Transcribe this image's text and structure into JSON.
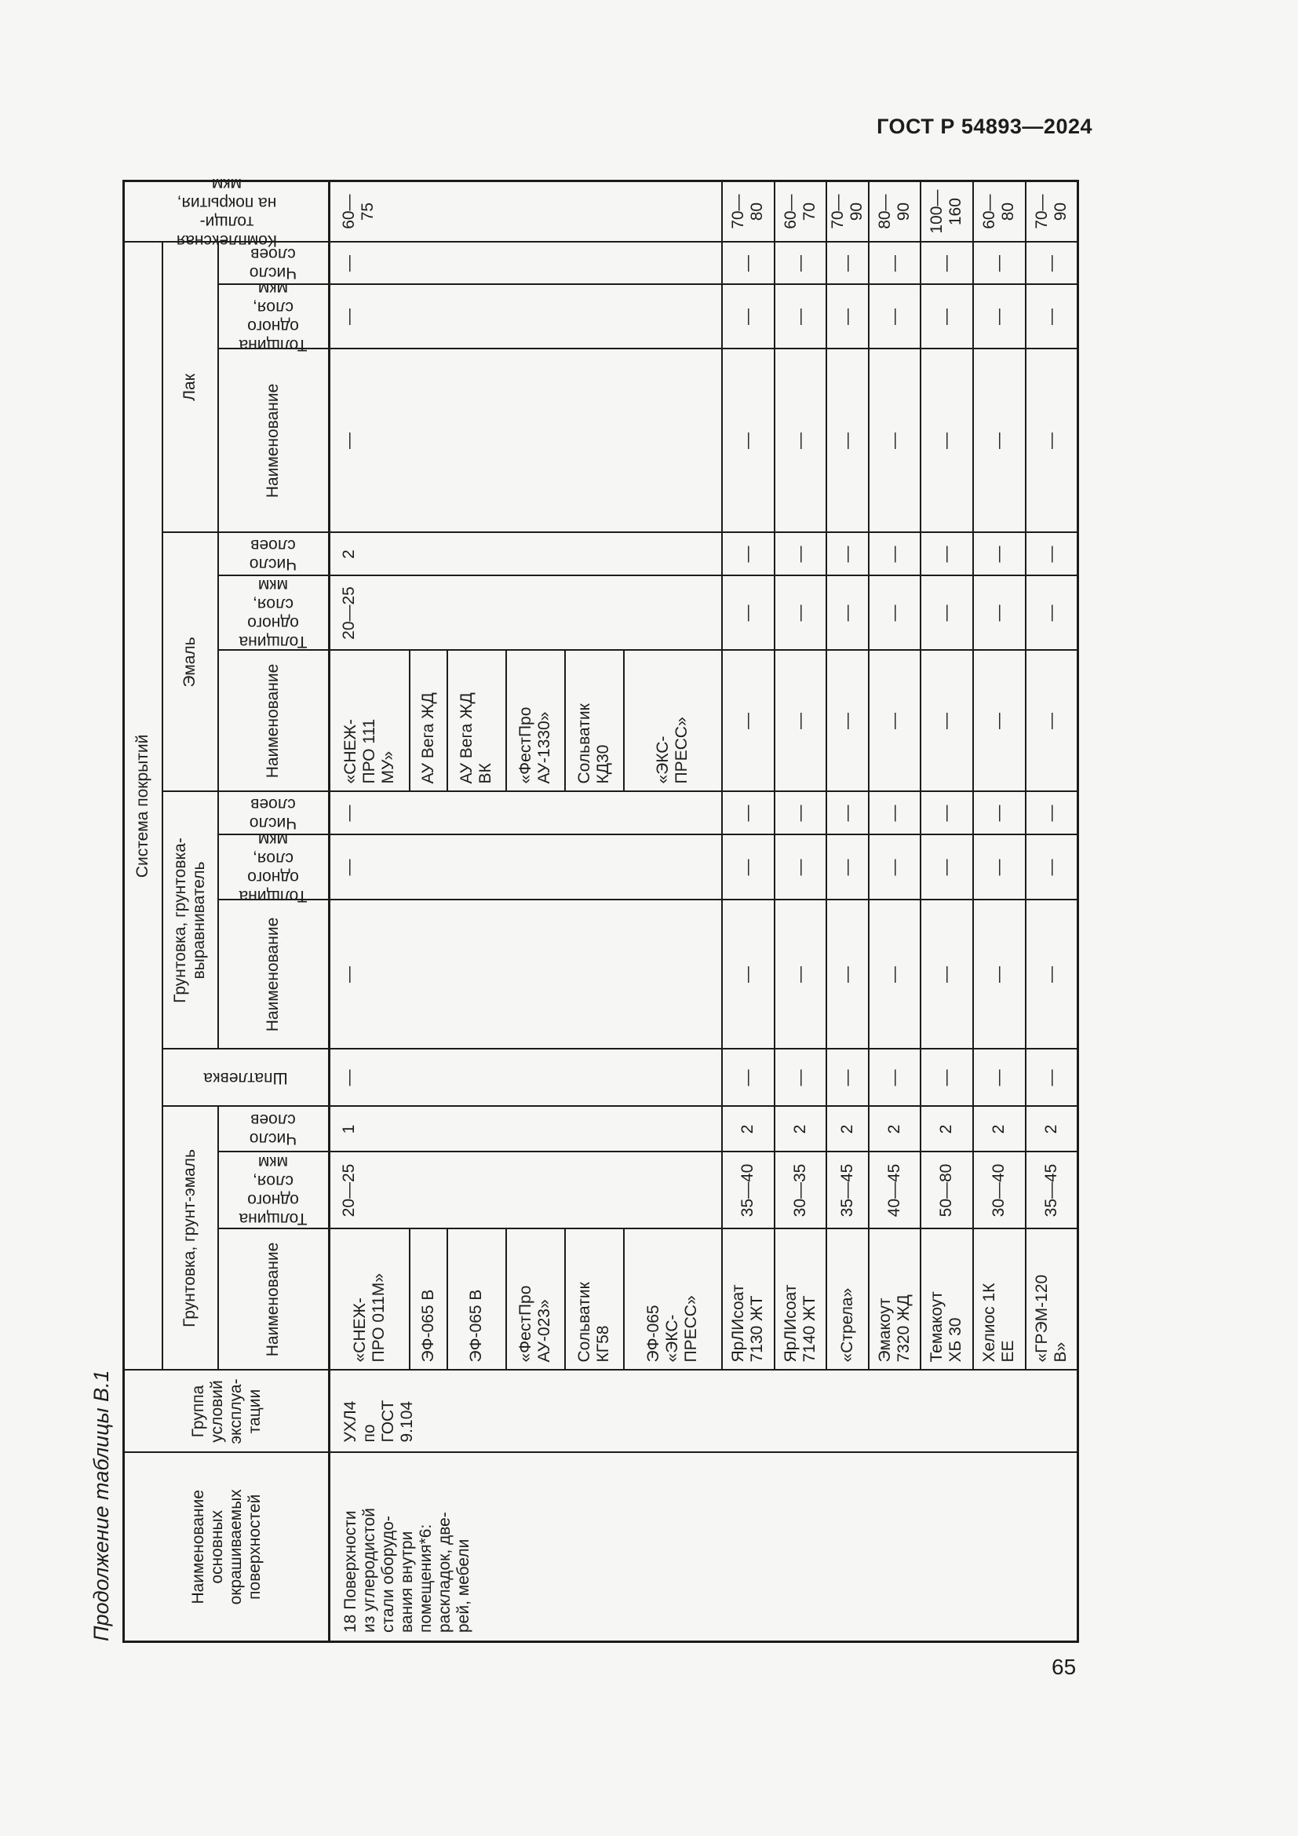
{
  "page": {
    "running_head": "ГОСТ Р 54893—2024",
    "page_number": "65",
    "table_caption": "Продолжение таблицы В.1"
  },
  "table": {
    "headers": {
      "surface": "Наименование\nосновных\nокрашиваемых\nповерхностей",
      "group": "Группа\nусловий\nэксплуа-\nтации",
      "system": "Система покрытий",
      "primer_enamel_group": "Грунтовка, грунт-эмаль",
      "putty": "Шпатлевка",
      "leveling_primer_group": "Грунтовка, грунтовка-\nвыравниватель",
      "enamel_group": "Эмаль",
      "lacquer_group": "Лак",
      "name": "Наименование",
      "thickness": "Толщина\nодного\nслоя, мкм",
      "layers": "Число\nслоев",
      "total": "Комплексная толщи-\nна покрытия, мкм"
    },
    "merged": {
      "surface": "18 Поверхности\nиз углеродистой\nстали оборудо-\nвания внутри\nпомещения*6:\nраскладок, две-\nрей, мебели",
      "group": "УХЛ4\nпо\nГОСТ\n9.104",
      "ge_thick": "20—25",
      "ge_layers": "1",
      "putty": "—",
      "gv_name": "—",
      "gv_thick": "—",
      "gv_layers": "—",
      "em_thick": "20—25",
      "em_layers": "2",
      "lak_name": "—",
      "lak_thick": "—",
      "lak_layers": "—",
      "total": "60—75"
    },
    "rows": [
      {
        "h": 102,
        "ge_name": "«СНЕЖ-\nПРО 011М»",
        "em_name": "«СНЕЖ-\nПРО 111\nМУ»"
      },
      {
        "h": 48,
        "ge_name": "ЭФ-065 В",
        "em_name": "АУ Вега ЖД"
      },
      {
        "h": 75,
        "ge_name": "ЭФ-065 В",
        "em_name": "АУ Вега ЖД\nВК"
      },
      {
        "h": 75,
        "ge_name": "«ФестПро\nАУ-023»",
        "em_name": "«ФестПро\nАУ-1330»"
      },
      {
        "h": 75,
        "ge_name": "Сольватик\nКГ58",
        "em_name": "Сольватик\nКД30"
      },
      {
        "h": 125,
        "ge_name": "ЭФ-065\n«ЭКС-\nПРЕСС»",
        "em_name": "«ЭКС-\nПРЕСС»"
      },
      {
        "h": 67,
        "ge_name": "ЯрЛИсоат\n7130 ЖТ",
        "ge_thick": "35—40",
        "ge_layers": "2",
        "putty": "—",
        "gv_name": "—",
        "gv_thick": "—",
        "gv_layers": "—",
        "em_name": "—",
        "em_thick": "—",
        "em_layers": "—",
        "lak_name": "—",
        "lak_thick": "—",
        "lak_layers": "—",
        "total": "70—80"
      },
      {
        "h": 66,
        "ge_name": "ЯрЛИсоат\n7140 ЖТ",
        "ge_thick": "30—35",
        "ge_layers": "2",
        "putty": "—",
        "gv_name": "—",
        "gv_thick": "—",
        "gv_layers": "—",
        "em_name": "—",
        "em_thick": "—",
        "em_layers": "—",
        "lak_name": "—",
        "lak_thick": "—",
        "lak_layers": "—",
        "total": "60—70"
      },
      {
        "h": 41,
        "ge_name": "«Стрела»",
        "ge_thick": "35—45",
        "ge_layers": "2",
        "putty": "—",
        "gv_name": "—",
        "gv_thick": "—",
        "gv_layers": "—",
        "em_name": "—",
        "em_thick": "—",
        "em_layers": "—",
        "lak_name": "—",
        "lak_thick": "—",
        "lak_layers": "—",
        "total": "70—90"
      },
      {
        "h": 66,
        "ge_name": "Эмакоут\n7320 ЖД",
        "ge_thick": "40—45",
        "ge_layers": "2",
        "putty": "—",
        "gv_name": "—",
        "gv_thick": "—",
        "gv_layers": "—",
        "em_name": "—",
        "em_thick": "—",
        "em_layers": "—",
        "lak_name": "—",
        "lak_thick": "—",
        "lak_layers": "—",
        "total": "80—90"
      },
      {
        "h": 67,
        "ge_name": "Темакоут\nХБ 30",
        "ge_thick": "50—80",
        "ge_layers": "2",
        "putty": "—",
        "gv_name": "—",
        "gv_thick": "—",
        "gv_layers": "—",
        "em_name": "—",
        "em_thick": "—",
        "em_layers": "—",
        "lak_name": "—",
        "lak_thick": "—",
        "lak_layers": "—",
        "total": "100—160"
      },
      {
        "h": 67,
        "ge_name": "Хелиос 1К\nЕЕ",
        "ge_thick": "30—40",
        "ge_layers": "2",
        "putty": "—",
        "gv_name": "—",
        "gv_thick": "—",
        "gv_layers": "—",
        "em_name": "—",
        "em_thick": "—",
        "em_layers": "—",
        "lak_name": "—",
        "lak_thick": "—",
        "lak_layers": "—",
        "total": "60—80"
      },
      {
        "h": 67,
        "ge_name": "«ГРЭМ-120\nВ»",
        "ge_thick": "35—45",
        "ge_layers": "2",
        "putty": "—",
        "gv_name": "—",
        "gv_thick": "—",
        "gv_layers": "—",
        "em_name": "—",
        "em_thick": "—",
        "em_layers": "—",
        "lak_name": "—",
        "lak_thick": "—",
        "lak_layers": "—",
        "total": "70—90"
      }
    ]
  }
}
